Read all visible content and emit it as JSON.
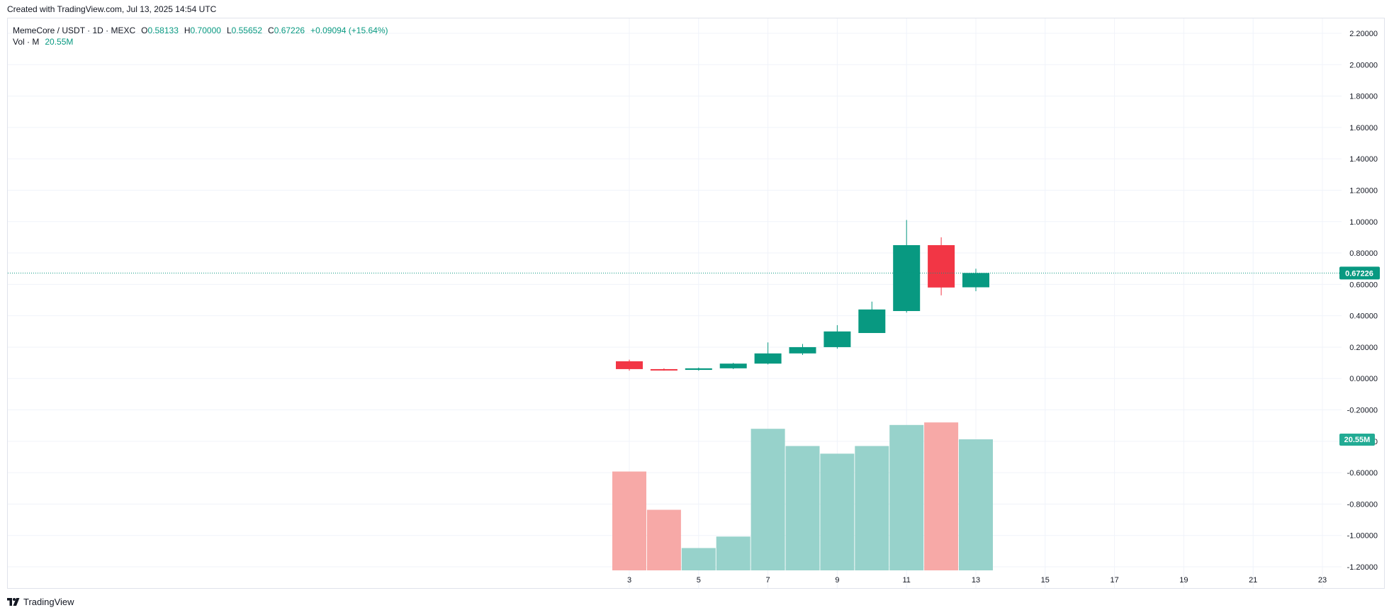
{
  "header": {
    "created_text": "Created with TradingView.com, Jul 13, 2025 14:54 UTC"
  },
  "legend": {
    "symbol": "MemeCore / USDT · 1D · MEXC",
    "open_label": "O",
    "open": "0.58133",
    "high_label": "H",
    "high": "0.70000",
    "low_label": "L",
    "low": "0.55652",
    "close_label": "C",
    "close": "0.67226",
    "change": "+0.09094 (+15.64%)",
    "vol_label": "Vol · M",
    "vol_value": "20.55M"
  },
  "footer": {
    "brand": "TradingView"
  },
  "colors": {
    "up": "#089981",
    "down": "#f23645",
    "vol_up": "#97d2cb",
    "vol_down": "#f7a9a7",
    "grid": "#f0f3fa",
    "axis_text": "#131722"
  },
  "chart_data": {
    "type": "candlestick",
    "price_axis": {
      "ticks": [
        "2.20000",
        "2.00000",
        "1.80000",
        "1.60000",
        "1.40000",
        "1.20000",
        "1.00000",
        "0.80000",
        "0.60000",
        "0.40000",
        "0.20000",
        "0.00000",
        "-0.20000",
        "-0.40000",
        "-0.60000",
        "-0.80000",
        "-1.00000",
        "-1.20000"
      ],
      "tick_values": [
        2.2,
        2.0,
        1.8,
        1.6,
        1.4,
        1.2,
        1.0,
        0.8,
        0.6,
        0.4,
        0.2,
        0.0,
        -0.2,
        -0.4,
        -0.6,
        -0.8,
        -1.0,
        -1.2
      ]
    },
    "time_axis": {
      "ticks": [
        "3",
        "5",
        "7",
        "9",
        "11",
        "13",
        "15",
        "17",
        "19",
        "21",
        "23"
      ],
      "tick_days": [
        3,
        5,
        7,
        9,
        11,
        13,
        15,
        17,
        19,
        21,
        23
      ]
    },
    "current_price_label": "0.67226",
    "current_volume_label": "20.55M",
    "candles": [
      {
        "day": 3,
        "o": 0.11,
        "h": 0.12,
        "l": 0.05,
        "c": 0.06,
        "v": 15.5
      },
      {
        "day": 4,
        "o": 0.06,
        "h": 0.065,
        "l": 0.05,
        "c": 0.055,
        "v": 9.5
      },
      {
        "day": 5,
        "o": 0.055,
        "h": 0.07,
        "l": 0.05,
        "c": 0.065,
        "v": 3.5
      },
      {
        "day": 6,
        "o": 0.065,
        "h": 0.1,
        "l": 0.06,
        "c": 0.095,
        "v": 5.3
      },
      {
        "day": 7,
        "o": 0.095,
        "h": 0.23,
        "l": 0.09,
        "c": 0.16,
        "v": 22.2
      },
      {
        "day": 8,
        "o": 0.16,
        "h": 0.22,
        "l": 0.15,
        "c": 0.2,
        "v": 19.5
      },
      {
        "day": 9,
        "o": 0.2,
        "h": 0.34,
        "l": 0.19,
        "c": 0.3,
        "v": 18.3
      },
      {
        "day": 10,
        "o": 0.29,
        "h": 0.49,
        "l": 0.29,
        "c": 0.44,
        "v": 19.5
      },
      {
        "day": 11,
        "o": 0.43,
        "h": 1.01,
        "l": 0.42,
        "c": 0.85,
        "v": 22.8
      },
      {
        "day": 12,
        "o": 0.85,
        "h": 0.9,
        "l": 0.53,
        "c": 0.58,
        "v": 23.2
      },
      {
        "day": 13,
        "o": 0.58133,
        "h": 0.7,
        "l": 0.55652,
        "c": 0.67226,
        "v": 20.55
      }
    ],
    "volume_unit": "M"
  }
}
